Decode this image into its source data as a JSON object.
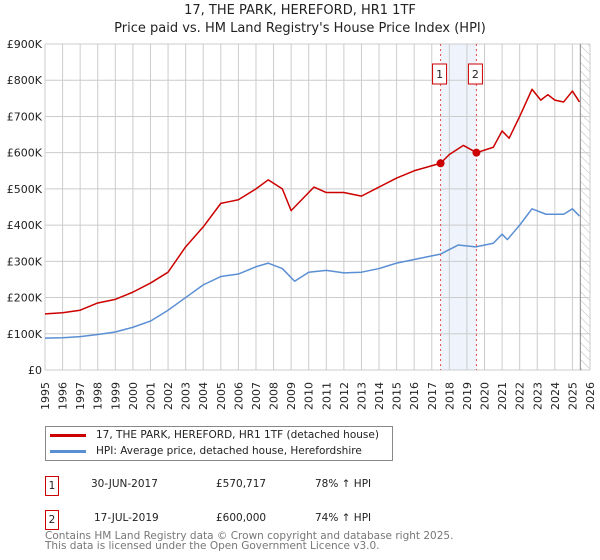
{
  "chart_data": {
    "type": "line",
    "title": "17, THE PARK, HEREFORD, HR1 1TF",
    "subtitle": "Price paid vs. HM Land Registry's House Price Index (HPI)",
    "xlim": [
      1995,
      2026
    ],
    "ylim": [
      0,
      900000
    ],
    "y_ticks": [
      {
        "v": 0,
        "label": "£0"
      },
      {
        "v": 100000,
        "label": "£100K"
      },
      {
        "v": 200000,
        "label": "£200K"
      },
      {
        "v": 300000,
        "label": "£300K"
      },
      {
        "v": 400000,
        "label": "£400K"
      },
      {
        "v": 500000,
        "label": "£500K"
      },
      {
        "v": 600000,
        "label": "£600K"
      },
      {
        "v": 700000,
        "label": "£700K"
      },
      {
        "v": 800000,
        "label": "£800K"
      },
      {
        "v": 900000,
        "label": "£900K"
      }
    ],
    "x_ticks": [
      "1995",
      "1996",
      "1997",
      "1998",
      "1999",
      "2000",
      "2001",
      "2002",
      "2003",
      "2004",
      "2005",
      "2006",
      "2007",
      "2008",
      "2009",
      "2010",
      "2011",
      "2012",
      "2013",
      "2014",
      "2015",
      "2016",
      "2017",
      "2018",
      "2019",
      "2020",
      "2021",
      "2022",
      "2023",
      "2024",
      "2025",
      "2026"
    ],
    "grid": true,
    "series": [
      {
        "name": "17, THE PARK, HEREFORD, HR1 1TF (detached house)",
        "color": "#cc0000",
        "x": [
          1995,
          1996,
          1997,
          1998,
          1999,
          2000,
          2001,
          2002,
          2003,
          2004,
          2005,
          2005.5,
          2006,
          2007,
          2007.7,
          2008.5,
          2009,
          2009.8,
          2010.3,
          2011,
          2012,
          2013,
          2014,
          2015,
          2016,
          2017.5,
          2018,
          2018.8,
          2019.55,
          2020.5,
          2021,
          2021.4,
          2022,
          2022.7,
          2023.2,
          2023.6,
          2024,
          2024.5,
          2025,
          2025.4
        ],
        "y": [
          155000,
          158000,
          165000,
          185000,
          195000,
          215000,
          240000,
          270000,
          340000,
          395000,
          460000,
          465000,
          470000,
          500000,
          525000,
          500000,
          440000,
          480000,
          505000,
          490000,
          490000,
          480000,
          505000,
          530000,
          550000,
          570717,
          595000,
          620000,
          600000,
          615000,
          660000,
          640000,
          700000,
          775000,
          745000,
          760000,
          745000,
          740000,
          770000,
          740000
        ]
      },
      {
        "name": "HPI: Average price, detached house, Herefordshire",
        "color": "#5b8fd4",
        "x": [
          1995,
          1996,
          1997,
          1998,
          1999,
          2000,
          2001,
          2002,
          2003,
          2004,
          2005,
          2006,
          2007,
          2007.7,
          2008.5,
          2009.2,
          2010,
          2011,
          2012,
          2013,
          2014,
          2015,
          2016,
          2017,
          2017.5,
          2018.5,
          2019.5,
          2020.5,
          2021,
          2021.3,
          2022,
          2022.7,
          2023.5,
          2024.5,
          2025,
          2025.4
        ],
        "y": [
          88000,
          89000,
          92000,
          98000,
          105000,
          118000,
          135000,
          165000,
          200000,
          235000,
          258000,
          265000,
          285000,
          295000,
          280000,
          245000,
          270000,
          275000,
          268000,
          270000,
          280000,
          295000,
          305000,
          315000,
          320000,
          345000,
          340000,
          350000,
          375000,
          360000,
          400000,
          445000,
          430000,
          430000,
          445000,
          425000
        ]
      }
    ],
    "sales": [
      {
        "id": "1",
        "x": 2017.5,
        "y": 570717
      },
      {
        "id": "2",
        "x": 2019.54,
        "y": 600000
      }
    ],
    "legend": "below"
  },
  "table": [
    {
      "id": "1",
      "date": "30-JUN-2017",
      "price": "£570,717",
      "hpi": "78% ↑ HPI"
    },
    {
      "id": "2",
      "date": "17-JUL-2019",
      "price": "£600,000",
      "hpi": "74% ↑ HPI"
    }
  ],
  "footer": [
    "Contains HM Land Registry data © Crown copyright and database right 2025.",
    "This data is licensed under the Open Government Licence v3.0."
  ]
}
